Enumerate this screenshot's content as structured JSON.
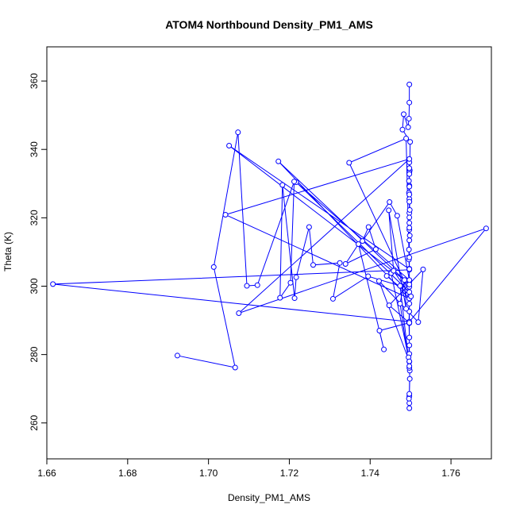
{
  "chart_data": {
    "type": "line",
    "title": "ATOM4 Northbound Density_PM1_AMS",
    "xlabel": "Density_PM1_AMS",
    "ylabel": "Theta (K)",
    "xlim": [
      1.66,
      1.77
    ],
    "ylim": [
      249.5,
      370.0
    ],
    "x_ticks": [
      1.66,
      1.68,
      1.7,
      1.72,
      1.74,
      1.76
    ],
    "x_tick_labels": [
      "1.66",
      "1.68",
      "1.70",
      "1.72",
      "1.74",
      "1.76"
    ],
    "y_ticks": [
      260,
      280,
      300,
      320,
      340,
      360
    ],
    "y_tick_labels": [
      "260",
      "280",
      "300",
      "320",
      "340",
      "360"
    ],
    "grid": false,
    "legend": "none",
    "color": "#0000ff",
    "marker": "open-circle",
    "series": [
      {
        "x": [
          1.7497,
          1.7497,
          1.7496,
          1.7494,
          1.7483,
          1.748,
          1.7499,
          1.7498,
          1.7497,
          1.7496,
          1.7496,
          1.7497,
          1.7497,
          1.7497,
          1.7498,
          1.7496,
          1.7496,
          1.7497,
          1.7497,
          1.7497,
          1.7494,
          1.7497,
          1.7497,
          1.7496,
          1.7497,
          1.7497,
          1.7497,
          1.7498,
          1.7497,
          1.7497,
          1.7497,
          1.7496,
          1.7497,
          1.7498,
          1.7497,
          1.7495,
          1.7497,
          1.7497,
          1.7497,
          1.7497,
          1.7497,
          1.7497,
          1.7497,
          1.7498,
          1.7497,
          1.7497,
          1.7497,
          1.7497,
          1.7497,
          1.7497,
          1.7497,
          1.7497,
          1.7497,
          1.7497,
          1.6615,
          1.7497,
          1.7687,
          1.7075,
          1.7497,
          1.7042,
          1.7497,
          1.7173,
          1.7487,
          1.7051,
          1.7497,
          1.7489,
          1.7348,
          1.7497,
          1.7217,
          1.7497,
          1.7467,
          1.7448,
          1.7381,
          1.7396,
          1.7414,
          1.7339,
          1.7371,
          1.7434,
          1.7423,
          1.7497,
          1.7447,
          1.7531,
          1.7519,
          1.7422,
          1.7497,
          1.7452,
          1.7441,
          1.7501,
          1.7458,
          1.7446,
          1.7489,
          1.7485,
          1.7474,
          1.7497,
          1.7474,
          1.7395,
          1.7308,
          1.7325,
          1.7259,
          1.7249,
          1.7217,
          1.7213,
          1.7183,
          1.7177,
          1.7203,
          1.7212,
          1.7121,
          1.7095,
          1.7073,
          1.7013,
          1.7066,
          1.6923
        ],
        "y": [
          359.0,
          353.7,
          349.0,
          346.5,
          350.3,
          345.8,
          342.2,
          333.9,
          333.3,
          330.8,
          327.3,
          325.5,
          321.4,
          318.5,
          314.8,
          310.7,
          307.8,
          305.1,
          301.3,
          299.8,
          297.7,
          296.9,
          292.6,
          289.5,
          285.0,
          280.2,
          277.9,
          272.9,
          267.8,
          265.8,
          264.3,
          267.1,
          268.5,
          275.3,
          276.1,
          279.2,
          282.7,
          289.2,
          294.9,
          300.5,
          308.4,
          316.5,
          320.1,
          322.3,
          326.8,
          329.4,
          334.5,
          336.2,
          332.8,
          329.1,
          324.7,
          317.1,
          313.4,
          304.8,
          300.6,
          289.6,
          316.9,
          292.1,
          337.2,
          320.9,
          296.4,
          336.5,
          301.6,
          341.1,
          305.0,
          343.2,
          336.1,
          298.3,
          330.4,
          301.8,
          320.6,
          324.6,
          313.2,
          317.3,
          310.8,
          306.5,
          312.3,
          281.5,
          287.0,
          289.3,
          294.4,
          304.9,
          289.5,
          301.5,
          278.0,
          303.8,
          303.0,
          297.0,
          304.5,
          322.2,
          293.4,
          301.8,
          294.9,
          276.6,
          300.1,
          302.9,
          296.3,
          306.8,
          306.2,
          317.3,
          302.6,
          296.5,
          329.6,
          296.6,
          301.0,
          330.6,
          300.3,
          300.1,
          345.0,
          305.6,
          276.2,
          279.7
        ]
      }
    ]
  }
}
